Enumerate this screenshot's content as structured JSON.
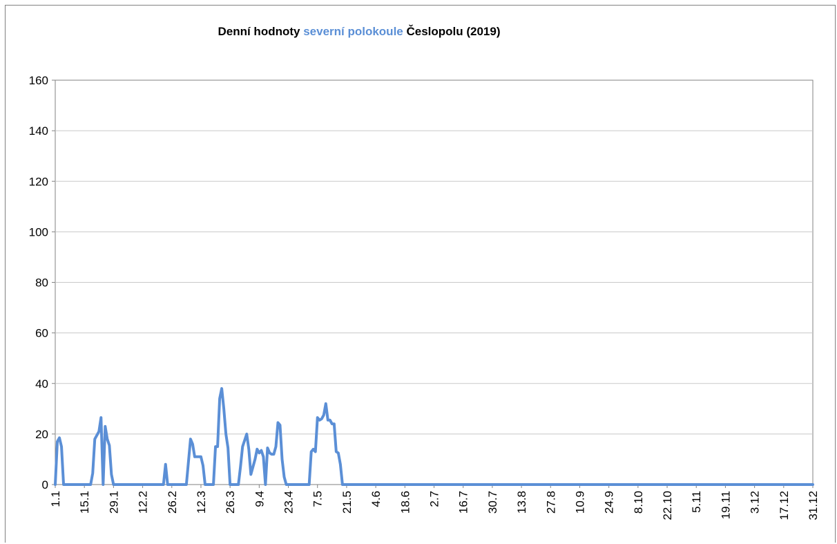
{
  "chart_data": {
    "type": "line",
    "title": {
      "part1": "Denní hodnoty ",
      "highlight": "severní polokoule",
      "part2": " Česlopolu (2019)"
    },
    "xlabel": "",
    "ylabel": "",
    "ylim": [
      0,
      160
    ],
    "yticks": [
      "0",
      "20",
      "40",
      "60",
      "80",
      "100",
      "120",
      "140",
      "160"
    ],
    "xtick_labels": [
      "1.1",
      "15.1",
      "29.1",
      "12.2",
      "26.2",
      "12.3",
      "26.3",
      "9.4",
      "23.4",
      "7.5",
      "21.5",
      "4.6",
      "18.6",
      "2.7",
      "16.7",
      "30.7",
      "13.8",
      "27.8",
      "10.9",
      "24.9",
      "8.10",
      "22.10",
      "5.11",
      "19.11",
      "3.12",
      "17.12",
      "31.12"
    ],
    "grid": true,
    "line_color": "#5b8fd6",
    "points": [
      [
        "1.1",
        0
      ],
      [
        "2.1",
        17
      ],
      [
        "3.1",
        18.5
      ],
      [
        "4.1",
        15
      ],
      [
        "5.1",
        0
      ],
      [
        "18.1",
        0
      ],
      [
        "19.1",
        4.5
      ],
      [
        "20.1",
        18
      ],
      [
        "22.1",
        21
      ],
      [
        "23.1",
        26.5
      ],
      [
        "24.1",
        0
      ],
      [
        "25.1",
        23
      ],
      [
        "26.1",
        18
      ],
      [
        "27.1",
        15.5
      ],
      [
        "28.1",
        4
      ],
      [
        "29.1",
        0
      ],
      [
        "22.2",
        0
      ],
      [
        "23.2",
        8
      ],
      [
        "24.2",
        0
      ],
      [
        "5.3",
        0
      ],
      [
        "6.3",
        9
      ],
      [
        "7.3",
        18
      ],
      [
        "8.3",
        16
      ],
      [
        "9.3",
        11
      ],
      [
        "12.3",
        11
      ],
      [
        "13.3",
        7.5
      ],
      [
        "14.3",
        0
      ],
      [
        "18.3",
        0
      ],
      [
        "19.3",
        15
      ],
      [
        "20.3",
        15
      ],
      [
        "21.3",
        34
      ],
      [
        "22.3",
        38
      ],
      [
        "23.3",
        30
      ],
      [
        "24.3",
        20
      ],
      [
        "25.3",
        14.5
      ],
      [
        "26.3",
        0
      ],
      [
        "30.3",
        0
      ],
      [
        "31.3",
        7
      ],
      [
        "1.4",
        15
      ],
      [
        "3.4",
        20
      ],
      [
        "4.4",
        14
      ],
      [
        "5.4",
        4
      ],
      [
        "6.4",
        7
      ],
      [
        "7.4",
        10
      ],
      [
        "8.4",
        14
      ],
      [
        "9.4",
        12.5
      ],
      [
        "10.4",
        13.5
      ],
      [
        "11.4",
        11
      ],
      [
        "12.4",
        0
      ],
      [
        "13.4",
        14.5
      ],
      [
        "14.4",
        12.5
      ],
      [
        "15.4",
        12
      ],
      [
        "16.4",
        12
      ],
      [
        "17.4",
        15
      ],
      [
        "18.4",
        24.5
      ],
      [
        "19.4",
        23.5
      ],
      [
        "20.4",
        10
      ],
      [
        "21.4",
        3
      ],
      [
        "22.4",
        0
      ],
      [
        "3.5",
        0
      ],
      [
        "4.5",
        13
      ],
      [
        "5.5",
        14
      ],
      [
        "6.5",
        13
      ],
      [
        "7.5",
        26.5
      ],
      [
        "8.5",
        25.5
      ],
      [
        "9.5",
        26
      ],
      [
        "10.5",
        27.5
      ],
      [
        "11.5",
        32
      ],
      [
        "12.5",
        25.5
      ],
      [
        "13.5",
        25.5
      ],
      [
        "14.5",
        24
      ],
      [
        "15.5",
        24
      ],
      [
        "16.5",
        13
      ],
      [
        "17.5",
        12.5
      ],
      [
        "18.5",
        8
      ],
      [
        "19.5",
        0
      ],
      [
        "31.12",
        0
      ]
    ]
  }
}
